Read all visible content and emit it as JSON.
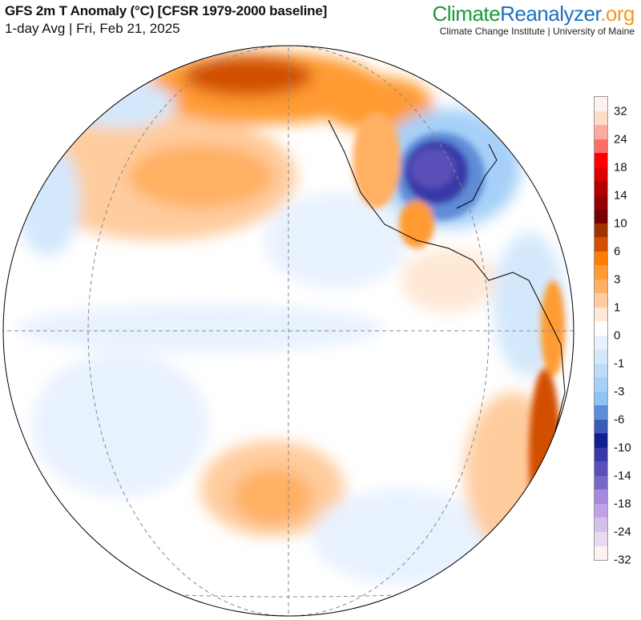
{
  "header": {
    "title": "GFS 2m T Anomaly (°C) [CFSR 1979-2000 baseline]",
    "subtitle": "1-day Avg | Fri, Feb 21, 2025",
    "brand_part1": "Climate",
    "brand_part2": "Reanalyzer",
    "brand_part3": ".org",
    "institution": "Climate Change Institute | University of Maine"
  },
  "colorbar": {
    "unit": "°C",
    "labels": [
      "32",
      "24",
      "18",
      "14",
      "10",
      "6",
      "3",
      "1",
      "0",
      "-1",
      "-3",
      "-6",
      "-10",
      "-14",
      "-18",
      "-24",
      "-32"
    ],
    "colors": [
      "#fff0f0",
      "#ffdcc8",
      "#ffaaa0",
      "#ff6e64",
      "#ff0000",
      "#dc0000",
      "#b40000",
      "#960000",
      "#780000",
      "#a03200",
      "#d25000",
      "#ff7d00",
      "#ff9b32",
      "#ffb064",
      "#ffcc9e",
      "#ffe8d6",
      "#ffffff",
      "#e8f2ff",
      "#d4e8fc",
      "#bcdcfa",
      "#a6d0f8",
      "#8cc4f6",
      "#5f8cd8",
      "#3a5ab8",
      "#102090",
      "#3838a8",
      "#5a50b8",
      "#7868c8",
      "#a888e0",
      "#c0a0e6",
      "#d4c0ec",
      "#e8d8f0",
      "#fff0f4"
    ]
  }
}
